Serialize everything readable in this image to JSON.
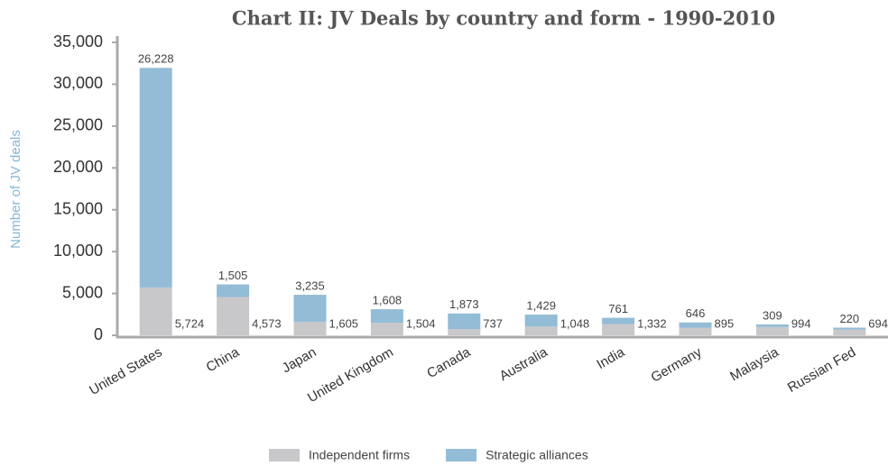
{
  "chart_data": {
    "type": "stacked_bar",
    "title": "Chart II: JV Deals by country and form - 1990-2010",
    "y_label": "Number of JV deals",
    "categories": [
      "United States",
      "China",
      "Japan",
      "United Kingdom",
      "Canada",
      "Australia",
      "India",
      "Germany",
      "Malaysia",
      "Russian Fed"
    ],
    "series": [
      {
        "name": "Independent firms",
        "color": "#c8c8ca",
        "values": [
          5724,
          4573,
          1605,
          1504,
          737,
          1048,
          1332,
          895,
          994,
          694
        ],
        "value_labels": [
          "5,724",
          "4,573",
          "1,605",
          "1,504",
          "737",
          "1,048",
          "1,332",
          "895",
          "994",
          "694"
        ]
      },
      {
        "name": "Strategic alliances",
        "color": "#93bcd6",
        "values": [
          26228,
          1505,
          3235,
          1608,
          1873,
          1429,
          761,
          646,
          309,
          220
        ],
        "value_labels": [
          "26,228",
          "1,505",
          "3,235",
          "1,608",
          "1,873",
          "1,429",
          "761",
          "646",
          "309",
          "220"
        ]
      }
    ],
    "ylim": [
      0,
      35000
    ],
    "yticks": [
      0,
      {
        "value": 5000,
        "label": "5,000"
      },
      {
        "value": 10000,
        "label": "10,000"
      },
      {
        "value": 15000,
        "label": "15,000"
      },
      {
        "value": 20000,
        "label": "20,000"
      },
      {
        "value": 25000,
        "label": "25,000"
      },
      {
        "value": 30000,
        "label": "30,000"
      },
      {
        "value": 35000,
        "label": "35,000"
      }
    ],
    "grid": false,
    "legend": "bottom"
  }
}
